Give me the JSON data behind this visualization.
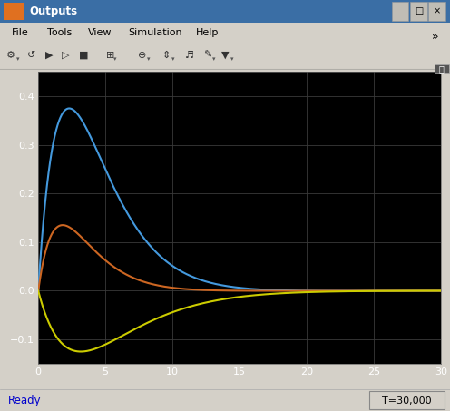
{
  "title": "Outputs",
  "status_left": "Ready",
  "status_right": "T=30,000",
  "menu_items": [
    "File",
    "Tools",
    "View",
    "Simulation",
    "Help"
  ],
  "xlim": [
    0,
    30
  ],
  "ylim": [
    -0.15,
    0.45
  ],
  "yticks": [
    -0.1,
    0.0,
    0.1,
    0.2,
    0.3,
    0.4
  ],
  "xticks": [
    0,
    5,
    10,
    15,
    20,
    25,
    30
  ],
  "bg_color": "#000000",
  "window_bg": "#d4d0c8",
  "grid_color": "#3a3a3a",
  "tick_color": "#ffffff",
  "curve_blue": "#4499dd",
  "curve_orange": "#cc6622",
  "curve_yellow": "#cccc00",
  "title_bar_color": "#3a6ea5",
  "toolbar_bg": "#d4d0c8"
}
